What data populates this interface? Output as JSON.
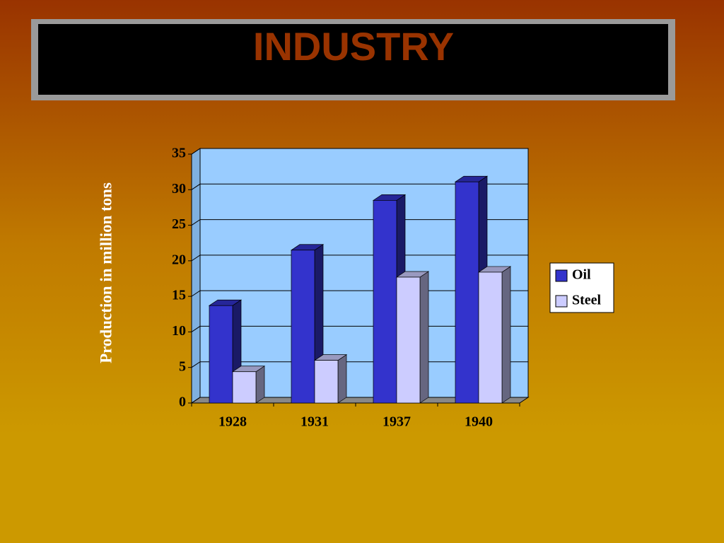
{
  "chart_data": {
    "type": "bar3d",
    "title": "INDUSTRY",
    "y_label": "Production in million tons",
    "categories": [
      "1928",
      "1931",
      "1937",
      "1940"
    ],
    "series": [
      {
        "name": "Oil",
        "color": "#3333cc",
        "values": [
          13.7,
          21.5,
          28.5,
          31.1
        ]
      },
      {
        "name": "Steel",
        "color": "#ccccff",
        "values": [
          4.4,
          6,
          17.7,
          18.4
        ]
      }
    ],
    "ylim": [
      0,
      35
    ],
    "yticks": [
      0,
      5,
      10,
      15,
      20,
      25,
      30,
      35
    ],
    "grid": true,
    "legend": "right"
  }
}
